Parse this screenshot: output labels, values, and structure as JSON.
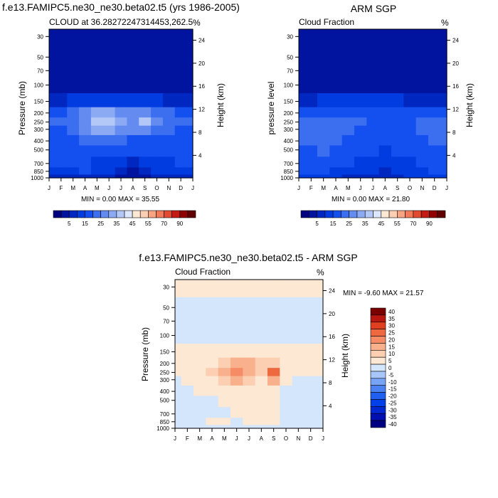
{
  "colors": {
    "seq_levels": [
      "#000080",
      "#0014a0",
      "#0028c0",
      "#003ce0",
      "#1450f0",
      "#3c6ef0",
      "#648cf0",
      "#8caaf4",
      "#b4c8f8",
      "#dce6fc",
      "#fde8d4",
      "#fbcfb4",
      "#f7a482",
      "#f07a5a",
      "#e44a30",
      "#c41c14",
      "#900000",
      "#600000"
    ],
    "diff_levels": [
      "#000080",
      "#0010b0",
      "#0028d0",
      "#0040e8",
      "#2060f0",
      "#4a82f4",
      "#78a4f8",
      "#a8c6fb",
      "#d4e6fc",
      "#fde8d4",
      "#fcceb2",
      "#f9b08c",
      "#f58c66",
      "#ee6840",
      "#e04020",
      "#b81810",
      "#7a0000"
    ]
  },
  "panels": {
    "p1": {
      "title": "f.e13.FAMIPC5.ne30_ne30.beta02.t5 (yrs 1986-2005)",
      "left_string": "CLOUD at 36.28272247314453,262.5",
      "right_string": "%",
      "ylabel": "Pressure (mb)",
      "ylabel_right": "Height (km)",
      "minmax": "MIN =   0.00 MAX =  35.55"
    },
    "p2": {
      "title": "ARM SGP",
      "left_string": "Cloud Fraction",
      "right_string": "%",
      "ylabel": "pressure level",
      "ylabel_right": "Height (km)",
      "minmax": "MIN =   0.00 MAX =  21.80"
    },
    "p3": {
      "title": "f.e13.FAMIPC5.ne30_ne30.beta02.t5 - ARM SGP",
      "left_string": "Cloud Fraction",
      "right_string": "%",
      "ylabel": "Pressure (mb)",
      "ylabel_right": "Height (km)",
      "minmax": "MIN =  -9.60 MAX =  21.57"
    }
  },
  "chart_data": [
    {
      "type": "heatmap",
      "title": "f.e13.FAMIPC5.ne30_ne30.beta02.t5 (yrs 1986-2005)",
      "subtitle": "CLOUD at 36.28272247314453,262.5",
      "units": "%",
      "xlabel": "",
      "ylabel": "Pressure (mb)",
      "ylabel_right": "Height (km)",
      "x": [
        "J",
        "F",
        "M",
        "A",
        "M",
        "J",
        "J",
        "A",
        "S",
        "O",
        "N",
        "D",
        "J"
      ],
      "y_ticks": [
        30,
        50,
        70,
        100,
        150,
        200,
        250,
        300,
        400,
        500,
        700,
        850,
        1000
      ],
      "y_ticks_right": [
        24,
        20,
        16,
        12,
        8,
        4
      ],
      "min": 0.0,
      "max": 35.55,
      "colorbar_labels": [
        "5",
        "15",
        "25",
        "35",
        "45",
        "55",
        "70",
        "90"
      ],
      "rows": [
        {
          "p": 30,
          "v": [
            1,
            1,
            1,
            1,
            1,
            1,
            1,
            1,
            1,
            1,
            1,
            1,
            1
          ]
        },
        {
          "p": 100,
          "v": [
            1,
            1,
            1,
            1,
            1,
            1,
            1,
            1,
            1,
            1,
            1,
            1,
            1
          ]
        },
        {
          "p": 150,
          "v": [
            4,
            4,
            5,
            6,
            7,
            8,
            7,
            6,
            6,
            5,
            4,
            4,
            4
          ]
        },
        {
          "p": 200,
          "v": [
            14,
            14,
            16,
            20,
            26,
            27,
            24,
            20,
            21,
            18,
            15,
            14,
            14
          ]
        },
        {
          "p": 250,
          "v": [
            15,
            15,
            18,
            24,
            32,
            33,
            28,
            22,
            30,
            20,
            16,
            15,
            15
          ]
        },
        {
          "p": 300,
          "v": [
            14,
            14,
            16,
            21,
            27,
            28,
            24,
            20,
            24,
            17,
            15,
            14,
            14
          ]
        },
        {
          "p": 400,
          "v": [
            12,
            12,
            13,
            15,
            16,
            17,
            15,
            14,
            14,
            13,
            12,
            12,
            12
          ]
        },
        {
          "p": 500,
          "v": [
            11,
            11,
            11,
            12,
            12,
            13,
            12,
            11,
            11,
            11,
            11,
            11,
            11
          ]
        },
        {
          "p": 700,
          "v": [
            10,
            10,
            10,
            10,
            8,
            7,
            6,
            4,
            5,
            8,
            9,
            10,
            10
          ]
        },
        {
          "p": 850,
          "v": [
            8,
            8,
            9,
            10,
            8,
            6,
            3,
            2,
            3,
            6,
            8,
            8,
            8
          ]
        },
        {
          "p": 1000,
          "v": [
            4,
            4,
            4,
            4,
            3,
            3,
            2,
            2,
            2,
            3,
            4,
            4,
            4
          ]
        }
      ]
    },
    {
      "type": "heatmap",
      "title": "ARM SGP",
      "subtitle": "Cloud Fraction",
      "units": "%",
      "xlabel": "",
      "ylabel": "pressure level",
      "ylabel_right": "Height (km)",
      "x": [
        "J",
        "F",
        "M",
        "A",
        "M",
        "J",
        "J",
        "A",
        "S",
        "O",
        "N",
        "D",
        "J"
      ],
      "y_ticks": [
        30,
        50,
        70,
        100,
        150,
        200,
        250,
        300,
        400,
        500,
        700,
        850,
        1000
      ],
      "y_ticks_right": [
        24,
        20,
        16,
        12,
        8,
        4
      ],
      "min": 0.0,
      "max": 21.8,
      "colorbar_labels": [
        "5",
        "15",
        "25",
        "35",
        "45",
        "55",
        "70",
        "90"
      ],
      "rows": [
        {
          "p": 30,
          "v": [
            1,
            1,
            1,
            1,
            1,
            1,
            1,
            1,
            1,
            1,
            1,
            1,
            1
          ]
        },
        {
          "p": 100,
          "v": [
            1,
            1,
            1,
            1,
            1,
            1,
            1,
            1,
            1,
            1,
            1,
            1,
            1
          ]
        },
        {
          "p": 150,
          "v": [
            4,
            4,
            5,
            5,
            5,
            6,
            5,
            5,
            5,
            4,
            4,
            4,
            4
          ]
        },
        {
          "p": 200,
          "v": [
            12,
            12,
            13,
            14,
            14,
            13,
            11,
            10,
            10,
            11,
            12,
            12,
            12
          ]
        },
        {
          "p": 250,
          "v": [
            16,
            16,
            17,
            18,
            17,
            15,
            13,
            12,
            12,
            14,
            15,
            16,
            16
          ]
        },
        {
          "p": 300,
          "v": [
            18,
            18,
            18,
            17,
            16,
            14,
            12,
            11,
            12,
            14,
            16,
            17,
            18
          ]
        },
        {
          "p": 400,
          "v": [
            15,
            15,
            16,
            15,
            14,
            12,
            10,
            10,
            11,
            13,
            14,
            15,
            15
          ]
        },
        {
          "p": 500,
          "v": [
            14,
            14,
            15,
            14,
            13,
            12,
            10,
            9,
            10,
            12,
            13,
            14,
            14
          ]
        },
        {
          "p": 700,
          "v": [
            12,
            12,
            12,
            11,
            10,
            9,
            7,
            6,
            7,
            9,
            10,
            11,
            12
          ]
        },
        {
          "p": 850,
          "v": [
            10,
            10,
            10,
            9,
            8,
            7,
            5,
            4,
            5,
            8,
            9,
            10,
            10
          ]
        },
        {
          "p": 1000,
          "v": [
            6,
            6,
            6,
            5,
            4,
            4,
            3,
            3,
            3,
            5,
            6,
            6,
            6
          ]
        }
      ]
    },
    {
      "type": "heatmap",
      "title": "f.e13.FAMIPC5.ne30_ne30.beta02.t5 - ARM SGP",
      "subtitle": "Cloud Fraction",
      "units": "%",
      "xlabel": "",
      "ylabel": "Pressure (mb)",
      "ylabel_right": "Height (km)",
      "x": [
        "J",
        "F",
        "M",
        "A",
        "M",
        "J",
        "J",
        "A",
        "S",
        "O",
        "N",
        "D",
        "J"
      ],
      "y_ticks": [
        30,
        50,
        70,
        100,
        150,
        200,
        250,
        300,
        400,
        500,
        700,
        850,
        1000
      ],
      "y_ticks_right": [
        24,
        20,
        16,
        12,
        8,
        4
      ],
      "min": -9.6,
      "max": 21.57,
      "colorbar_labels": [
        "40",
        "35",
        "30",
        "25",
        "20",
        "15",
        "10",
        "5",
        "0",
        "-5",
        "-10",
        "-15",
        "-20",
        "-25",
        "-30",
        "-35",
        "-40"
      ],
      "rows": [
        {
          "p": 30,
          "v": [
            1,
            1,
            1,
            1,
            1,
            1,
            1,
            1,
            1,
            1,
            1,
            1,
            1
          ]
        },
        {
          "p": 50,
          "v": [
            -1,
            -1,
            -1,
            -1,
            -1,
            -1,
            -1,
            -1,
            -1,
            -1,
            -1,
            -1,
            -1
          ]
        },
        {
          "p": 100,
          "v": [
            -1,
            -1,
            -1,
            -1,
            -1,
            -1,
            -1,
            -1,
            -1,
            -1,
            -1,
            -1,
            -1
          ]
        },
        {
          "p": 150,
          "v": [
            1,
            1,
            1,
            1,
            2,
            2,
            2,
            1,
            1,
            1,
            1,
            1,
            1
          ]
        },
        {
          "p": 200,
          "v": [
            1,
            1,
            2,
            4,
            9,
            11,
            10,
            5,
            8,
            3,
            1,
            1,
            1
          ]
        },
        {
          "p": 250,
          "v": [
            1,
            1,
            2,
            7,
            14,
            17,
            14,
            7,
            21,
            4,
            1,
            1,
            1
          ]
        },
        {
          "p": 300,
          "v": [
            -2,
            0,
            1,
            4,
            9,
            10,
            8,
            3,
            10,
            1,
            -1,
            -2,
            -2
          ]
        },
        {
          "p": 400,
          "v": [
            -3,
            -2,
            0,
            1,
            2,
            2,
            1,
            1,
            1,
            -1,
            -2,
            -3,
            -3
          ]
        },
        {
          "p": 500,
          "v": [
            -3,
            -3,
            -2,
            -1,
            0,
            1,
            1,
            1,
            0,
            -2,
            -3,
            -3,
            -3
          ]
        },
        {
          "p": 700,
          "v": [
            -2,
            -2,
            -2,
            -1,
            -1,
            0,
            1,
            2,
            1,
            -1,
            -2,
            -2,
            -2
          ]
        },
        {
          "p": 850,
          "v": [
            -1,
            -1,
            -1,
            0,
            0,
            -1,
            0,
            1,
            0,
            -1,
            -1,
            -1,
            -1
          ]
        },
        {
          "p": 1000,
          "v": [
            -1,
            -1,
            -2,
            -2,
            -2,
            -1,
            -1,
            -1,
            -1,
            -2,
            -2,
            -1,
            -1
          ]
        }
      ]
    }
  ]
}
